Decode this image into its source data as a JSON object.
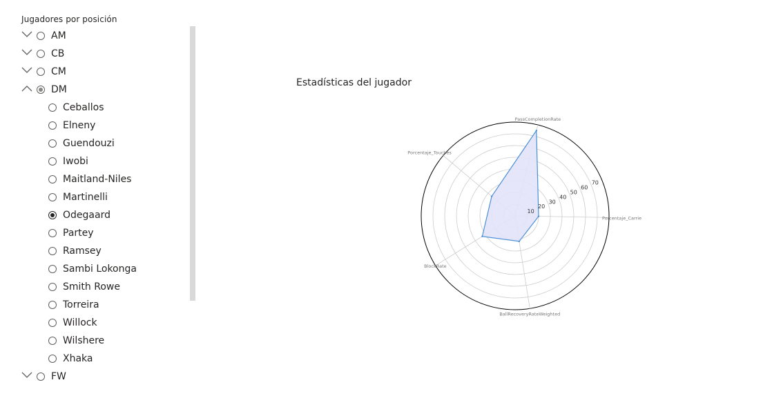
{
  "slicer": {
    "title": "Jugadores por posición",
    "groups": [
      {
        "label": "AM",
        "expanded": false,
        "state": "none"
      },
      {
        "label": "CB",
        "expanded": false,
        "state": "none"
      },
      {
        "label": "CM",
        "expanded": false,
        "state": "none"
      },
      {
        "label": "DM",
        "expanded": true,
        "state": "partial"
      },
      {
        "label": "FW",
        "expanded": false,
        "state": "none"
      }
    ],
    "dm_players": [
      {
        "label": "Ceballos",
        "selected": false
      },
      {
        "label": "Elneny",
        "selected": false
      },
      {
        "label": "Guendouzi",
        "selected": false
      },
      {
        "label": "Iwobi",
        "selected": false
      },
      {
        "label": "Maitland-Niles",
        "selected": false
      },
      {
        "label": "Martinelli",
        "selected": false
      },
      {
        "label": "Odegaard",
        "selected": true
      },
      {
        "label": "Partey",
        "selected": false
      },
      {
        "label": "Ramsey",
        "selected": false
      },
      {
        "label": "Sambi Lokonga",
        "selected": false
      },
      {
        "label": "Smith Rowe",
        "selected": false
      },
      {
        "label": "Torreira",
        "selected": false
      },
      {
        "label": "Willock",
        "selected": false
      },
      {
        "label": "Wilshere",
        "selected": false
      },
      {
        "label": "Xhaka",
        "selected": false
      }
    ]
  },
  "chart": {
    "title": "Estadísticas del jugador"
  },
  "chart_data": {
    "type": "radar",
    "axes": [
      "PassCompletionRate",
      "Porcentaje_Carrie",
      "BallRecoveryRateWeighted",
      "BlockRate",
      "Porcentaje_Touches"
    ],
    "values": [
      75,
      20,
      22,
      33,
      26
    ],
    "rlim": [
      0,
      80
    ],
    "rticks": [
      10,
      20,
      30,
      40,
      50,
      60,
      70
    ],
    "grid": true,
    "colors": {
      "line": "#4a8fd6",
      "fill": "#e3e3fb",
      "grid": "#cccccc",
      "outer": "#000000"
    }
  }
}
